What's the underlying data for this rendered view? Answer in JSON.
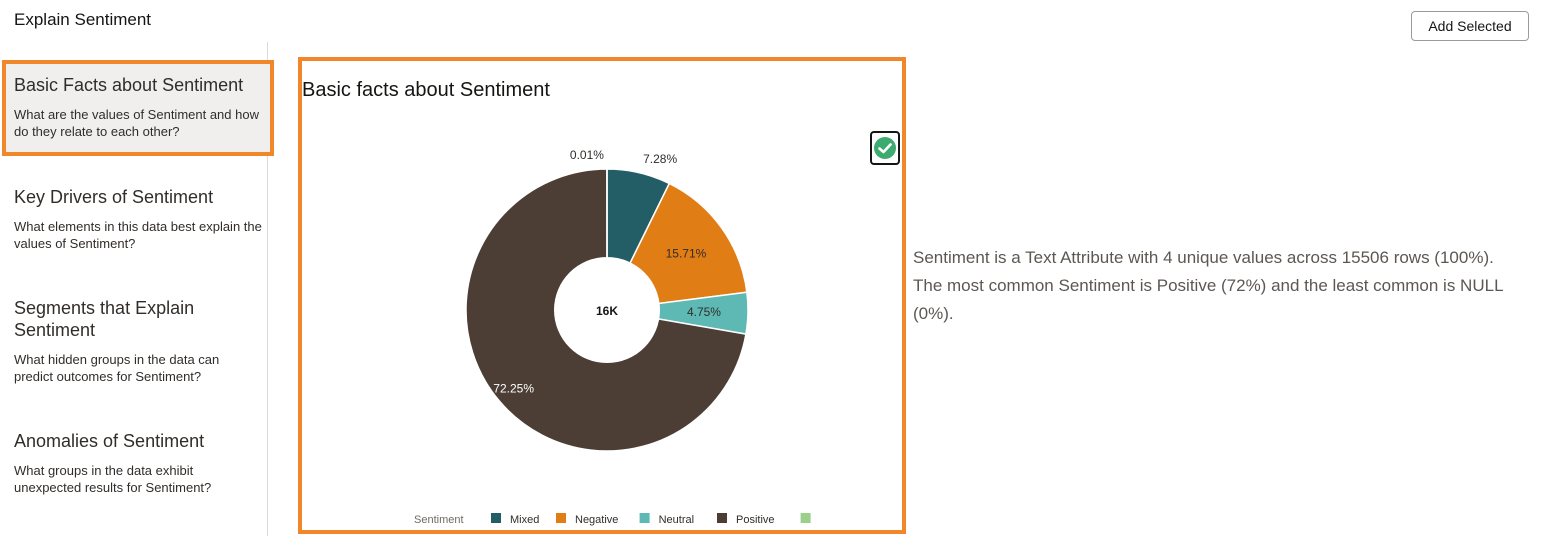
{
  "header": {
    "title": "Explain Sentiment",
    "add_selected_label": "Add Selected"
  },
  "sidebar": {
    "items": [
      {
        "title": "Basic Facts about Sentiment",
        "description": "What are the values of Sentiment and how do they relate to each other?",
        "active": true
      },
      {
        "title": "Key Drivers of Sentiment",
        "description": "What elements in this data best explain the values of Sentiment?"
      },
      {
        "title": "Segments that Explain Sentiment",
        "description": "What hidden groups in the data can predict outcomes for Sentiment?"
      },
      {
        "title": "Anomalies of Sentiment",
        "description": "What groups in the data exhibit unexpected results for Sentiment?"
      }
    ]
  },
  "card": {
    "title": "Basic facts about Sentiment",
    "selected_icon": "check-circle-icon"
  },
  "chart_data": {
    "type": "pie",
    "donut": true,
    "center_label": "16K",
    "slices": [
      {
        "name": "Mixed",
        "percent": 7.28,
        "label": "7.28%",
        "color": "#235e66"
      },
      {
        "name": "Negative",
        "percent": 15.71,
        "label": "15.71%",
        "color": "#e07d14"
      },
      {
        "name": "Neutral",
        "percent": 4.75,
        "label": "4.75%",
        "color": "#5eb9b4"
      },
      {
        "name": "Positive",
        "percent": 72.25,
        "label": "72.25%",
        "color": "#4c3e35"
      },
      {
        "name": "",
        "percent": 0.01,
        "label": "0.01%",
        "color": "#9ccf8a"
      }
    ],
    "legend": {
      "title": "Sentiment",
      "placement": "bottom"
    }
  },
  "summary": "Sentiment is a Text Attribute with 4 unique values across 15506 rows (100%). The most common Sentiment is Positive (72%) and the least common is NULL (0%)."
}
